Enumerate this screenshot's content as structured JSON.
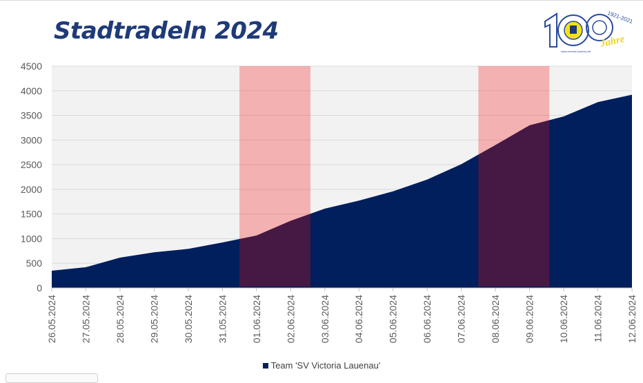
{
  "chart_data": {
    "type": "area",
    "title": "Stadtradeln 2024",
    "xlabel": "",
    "ylabel": "",
    "ylim": [
      0,
      4500
    ],
    "yticks": [
      0,
      500,
      1000,
      1500,
      2000,
      2500,
      3000,
      3500,
      4000,
      4500
    ],
    "grid": true,
    "legend_position": "bottom",
    "categories": [
      "26.05.2024",
      "27.05.2024",
      "28.05.2024",
      "29.05.2024",
      "30.05.2024",
      "31.05.2024",
      "01.06.2024",
      "02.06.2024",
      "03.06.2024",
      "04.06.2024",
      "05.06.2024",
      "06.06.2024",
      "07.06.2024",
      "08.06.2024",
      "09.06.2024",
      "10.06.2024",
      "11.06.2024",
      "12.06.2024"
    ],
    "series": [
      {
        "name": "Team 'SV Victoria Lauenau'",
        "color": "#001f5c",
        "values": [
          350,
          420,
          615,
          723,
          793,
          923,
          1063,
          1362,
          1609,
          1770,
          1960,
          2200,
          2510,
          2900,
          3300,
          3480,
          3770,
          3920
        ]
      }
    ],
    "highlight_bands": [
      {
        "from_index": 5.5,
        "to_index": 7.58,
        "color": "#f4b0b0"
      },
      {
        "from_index": 12.5,
        "to_index": 14.58,
        "color": "#f4b0b0"
      }
    ]
  },
  "logo": {
    "years": "1921-2021",
    "number": "100",
    "word": "Jahre",
    "url": "www.victoria-lauenau.de"
  }
}
